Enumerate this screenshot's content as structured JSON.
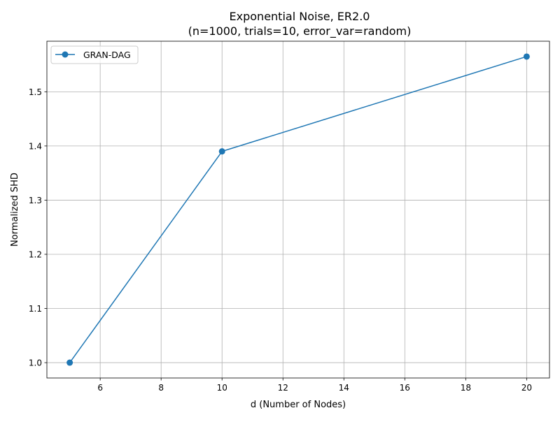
{
  "chart_data": {
    "type": "line",
    "title": "Exponential Noise, ER2.0",
    "subtitle": "(n=1000, trials=10, error_var=random)",
    "xlabel": "d (Number of Nodes)",
    "ylabel": "Normalized SHD",
    "xlim": [
      4.25,
      20.75
    ],
    "ylim": [
      0.9717,
      1.5933
    ],
    "xticks": [
      6,
      8,
      10,
      12,
      14,
      16,
      18,
      20
    ],
    "yticks": [
      1.0,
      1.1,
      1.2,
      1.3,
      1.4,
      1.5
    ],
    "grid": true,
    "legend_position": "upper-left",
    "series": [
      {
        "name": "GRAN-DAG",
        "color": "#1f77b4",
        "marker": "circle",
        "x": [
          5,
          10,
          20
        ],
        "y": [
          1.0,
          1.39,
          1.565
        ]
      }
    ]
  }
}
